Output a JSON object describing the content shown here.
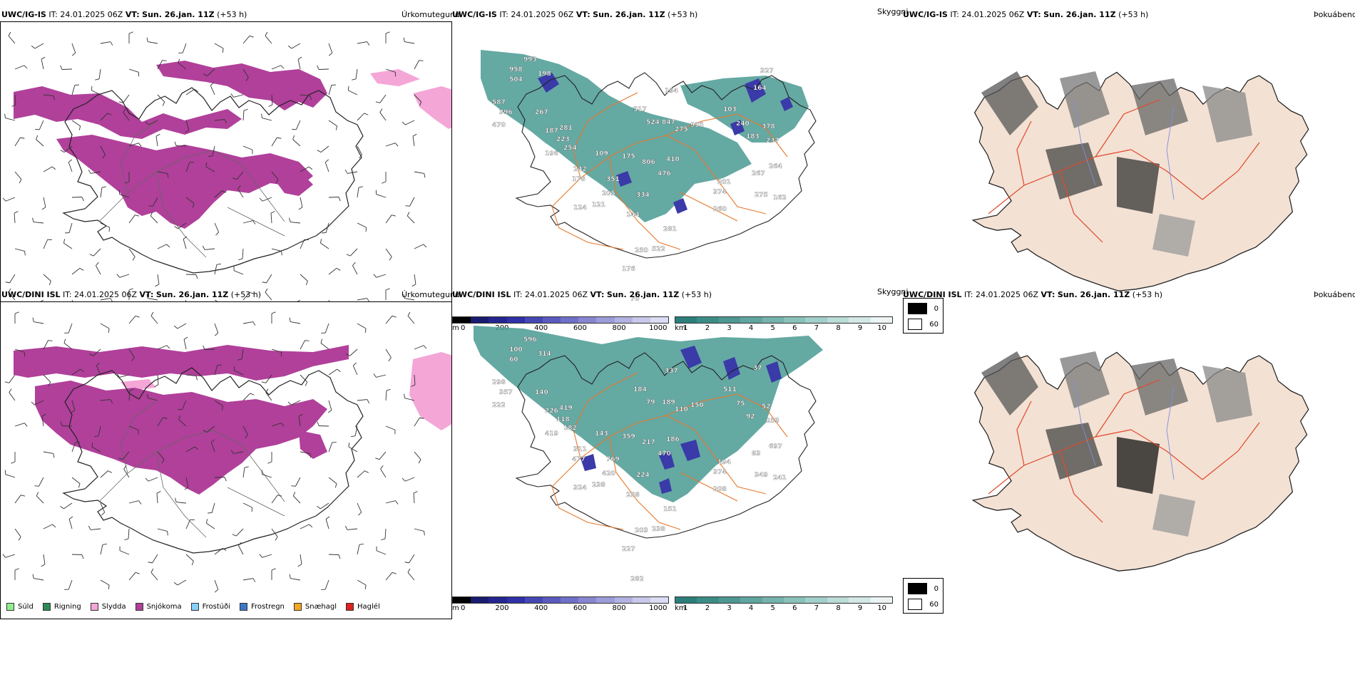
{
  "rows": [
    {
      "model": "UWC/IG-IS",
      "it_label": "IT:",
      "it": "24.01.2025 06Z",
      "vt_label": "VT:",
      "vt": "Sun. 26.jan. 11Z",
      "lead": "(+53 h)",
      "labels": [
        "993",
        "958",
        "504",
        "198",
        "587",
        "396",
        "470",
        "267",
        "187",
        "196",
        "281",
        "223",
        "254",
        "109",
        "242",
        "178",
        "351",
        "205",
        "121",
        "124",
        "175",
        "806",
        "410",
        "476",
        "334",
        "144",
        "281",
        "522",
        "250",
        "176",
        "70",
        "194",
        "517",
        "524",
        "847",
        "275",
        "955",
        "103",
        "240",
        "183",
        "378",
        "267",
        "264",
        "374",
        "201",
        "162",
        "275",
        "260",
        "237",
        "164",
        "327"
      ]
    },
    {
      "model": "UWC/DINI ISL",
      "it_label": "IT:",
      "it": "24.01.2025 06Z",
      "vt_label": "VT:",
      "vt": "Sun. 26.jan. 11Z",
      "lead": "(+53 h)",
      "labels": [
        "596",
        "100",
        "60",
        "314",
        "298",
        "357",
        "222",
        "140",
        "226",
        "419",
        "419",
        "118",
        "182",
        "143",
        "311",
        "477",
        "769",
        "420",
        "238",
        "324",
        "359",
        "217",
        "186",
        "470",
        "224",
        "258",
        "151",
        "238",
        "203",
        "227",
        "282",
        "337",
        "184",
        "79",
        "189",
        "110",
        "150",
        "511",
        "75",
        "92",
        "52",
        "83",
        "697",
        "374",
        "194",
        "241",
        "349",
        "208",
        "253",
        "37"
      ]
    }
  ],
  "panel_titles": {
    "precip": "Úrkomutegund",
    "cloud": "Skyggni",
    "fog": "Þokuábendi"
  },
  "precip_legend": [
    {
      "label": "Súld",
      "color": "#90ee90"
    },
    {
      "label": "Rigning",
      "color": "#2e8b57"
    },
    {
      "label": "Slydda",
      "color": "#f4a6d7"
    },
    {
      "label": "Snjókoma",
      "color": "#b0409a"
    },
    {
      "label": "Frostúði",
      "color": "#87cefa"
    },
    {
      "label": "Frostregn",
      "color": "#3c78c8"
    },
    {
      "label": "Snæhagl",
      "color": "#f5a623"
    },
    {
      "label": "Haglél",
      "color": "#e0201c"
    }
  ],
  "height_scale": {
    "unit": "m",
    "ticks": [
      "0",
      "200",
      "400",
      "600",
      "800",
      "1000"
    ],
    "colors": [
      "#000000",
      "#1a1a70",
      "#25258f",
      "#3030a8",
      "#4646b4",
      "#5a5abf",
      "#7070c8",
      "#8686d1",
      "#9c9cda",
      "#b2b2e2",
      "#c8c8eb",
      "#dcdcf4"
    ]
  },
  "visibility_scale": {
    "unit": "km",
    "ticks": [
      "1",
      "2",
      "3",
      "4",
      "5",
      "6",
      "7",
      "8",
      "9",
      "10"
    ],
    "colors": [
      "#2b7f7a",
      "#3c8c86",
      "#4d9892",
      "#60a59f",
      "#75b3ad",
      "#8bc1bb",
      "#a2cfc9",
      "#bbdcd7",
      "#d4e9e6",
      "#ecf5f3"
    ]
  },
  "fog_legend": [
    {
      "label": "0",
      "color": "#000000"
    },
    {
      "label": "60",
      "color": "#ffffff"
    }
  ],
  "colors": {
    "snow": "#b0409a",
    "sleet": "#f4a6d7",
    "teal": "#4a9a93",
    "road": "#e8782a",
    "landtint": "#f3e1d4"
  }
}
